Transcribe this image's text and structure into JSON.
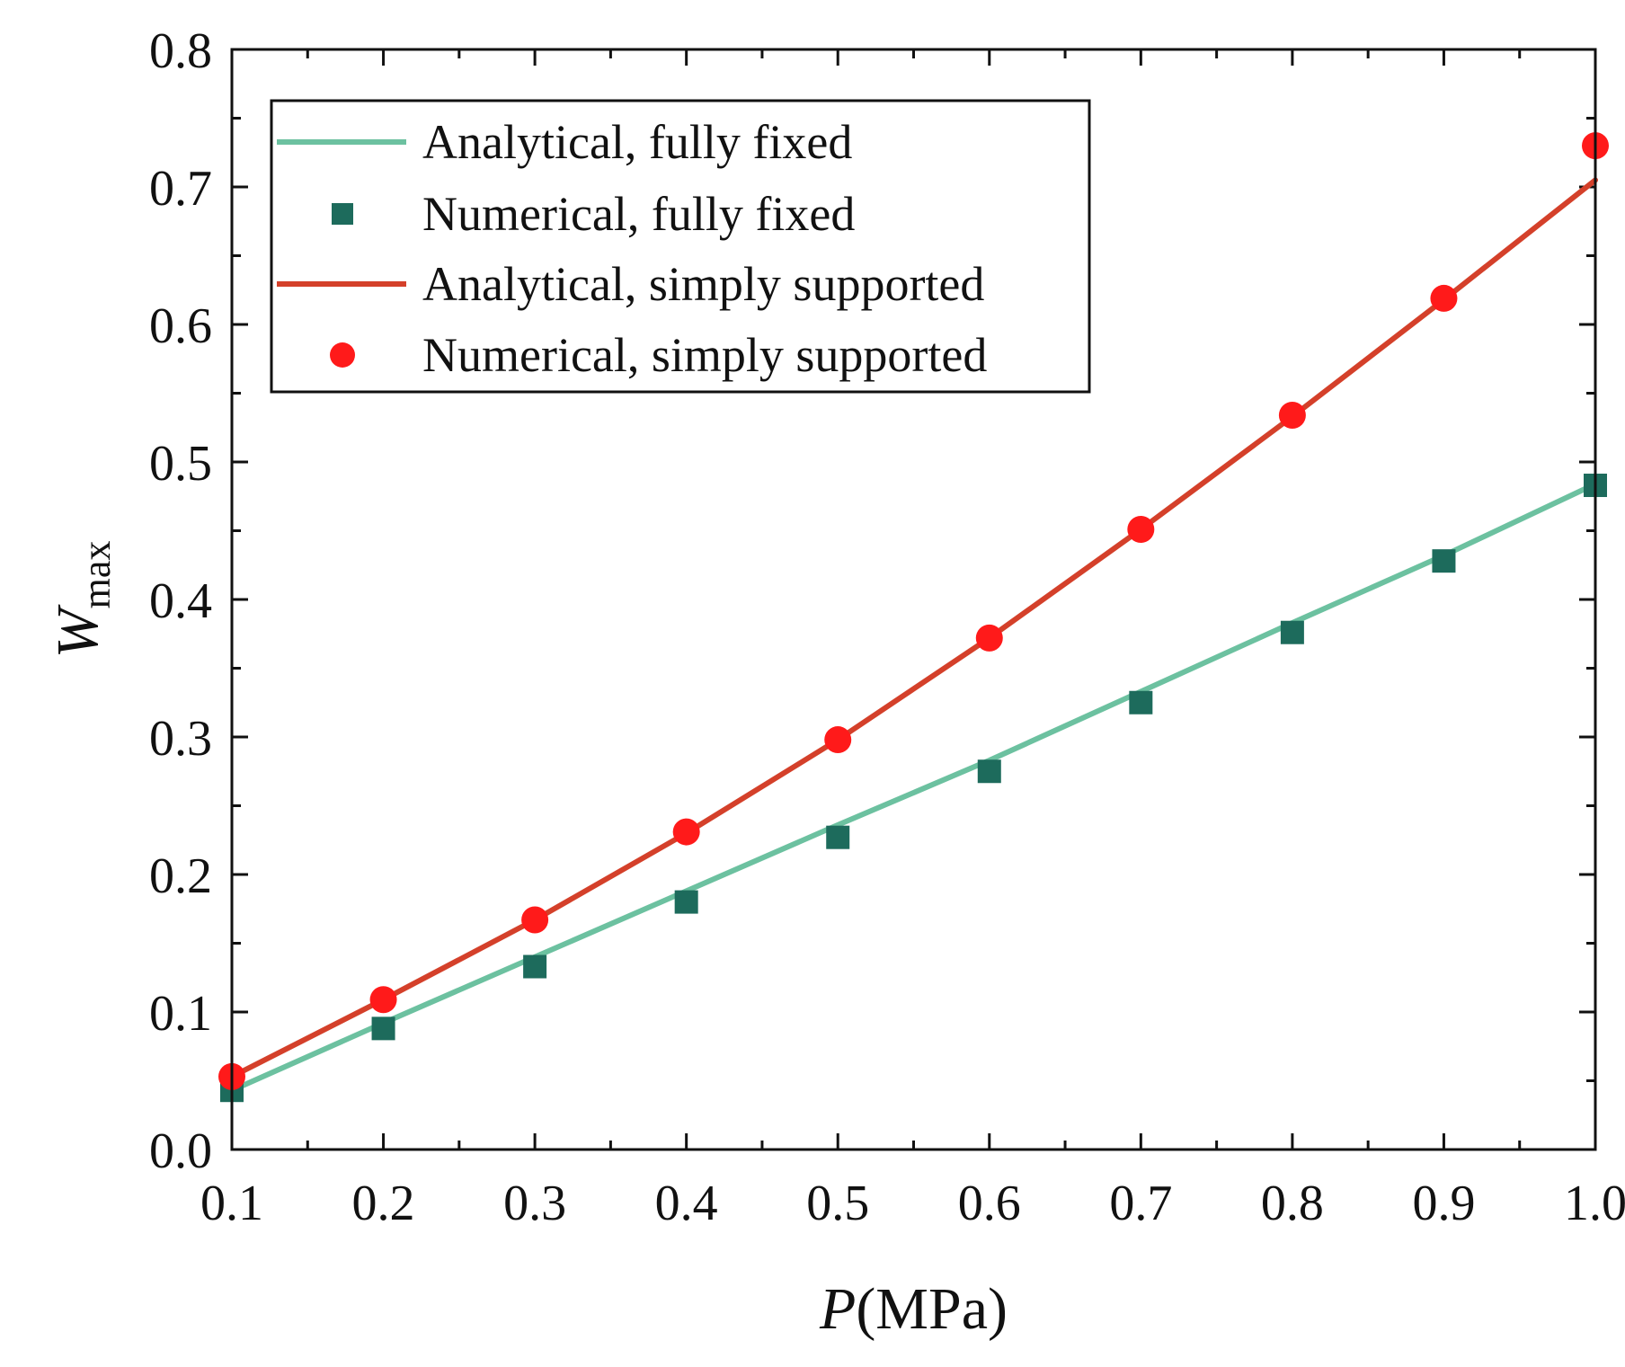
{
  "chart_data": {
    "type": "line",
    "title": "",
    "xlabel": "P(MPa)",
    "xlabel_parts": {
      "var": "P",
      "unit": "(MPa)"
    },
    "ylabel": "Wmax",
    "ylabel_parts": {
      "var": "W",
      "sub": "max"
    },
    "xlim": [
      0.1,
      1.0
    ],
    "ylim": [
      0.0,
      0.8
    ],
    "xticks": [
      0.1,
      0.2,
      0.3,
      0.4,
      0.5,
      0.6,
      0.7,
      0.8,
      0.9,
      1.0
    ],
    "xtick_labels": [
      "0.1",
      "0.2",
      "0.3",
      "0.4",
      "0.5",
      "0.6",
      "0.7",
      "0.8",
      "0.9",
      "1.0"
    ],
    "yticks": [
      0.0,
      0.1,
      0.2,
      0.3,
      0.4,
      0.5,
      0.6,
      0.7,
      0.8
    ],
    "ytick_labels": [
      "0.0",
      "0.1",
      "0.2",
      "0.3",
      "0.4",
      "0.5",
      "0.6",
      "0.7",
      "0.8"
    ],
    "legend_position": "top-left",
    "series": [
      {
        "name": "Analytical, fully fixed",
        "kind": "line",
        "color": "#6cc1a0",
        "x": [
          0.1,
          0.2,
          0.3,
          0.4,
          0.5,
          0.6,
          0.7,
          0.8,
          0.9,
          1.0
        ],
        "y": [
          0.043,
          0.092,
          0.14,
          0.188,
          0.236,
          0.283,
          0.333,
          0.383,
          0.432,
          0.484
        ]
      },
      {
        "name": "Numerical, fully fixed",
        "kind": "square",
        "color": "#1d6b5c",
        "x": [
          0.1,
          0.2,
          0.3,
          0.4,
          0.5,
          0.6,
          0.7,
          0.8,
          0.9,
          1.0
        ],
        "y": [
          0.043,
          0.088,
          0.133,
          0.18,
          0.227,
          0.275,
          0.325,
          0.376,
          0.428,
          0.483
        ]
      },
      {
        "name": "Analytical, simply supported",
        "kind": "line",
        "color": "#d4402a",
        "x": [
          0.1,
          0.2,
          0.3,
          0.4,
          0.5,
          0.6,
          0.7,
          0.8,
          0.9,
          1.0
        ],
        "y": [
          0.053,
          0.109,
          0.167,
          0.23,
          0.298,
          0.372,
          0.451,
          0.533,
          0.618,
          0.705
        ]
      },
      {
        "name": "Numerical, simply supported",
        "kind": "circle",
        "color": "#ff1a1a",
        "x": [
          0.1,
          0.2,
          0.3,
          0.4,
          0.5,
          0.6,
          0.7,
          0.8,
          0.9,
          1.0
        ],
        "y": [
          0.053,
          0.109,
          0.167,
          0.231,
          0.298,
          0.372,
          0.451,
          0.534,
          0.619,
          0.73
        ]
      }
    ]
  }
}
